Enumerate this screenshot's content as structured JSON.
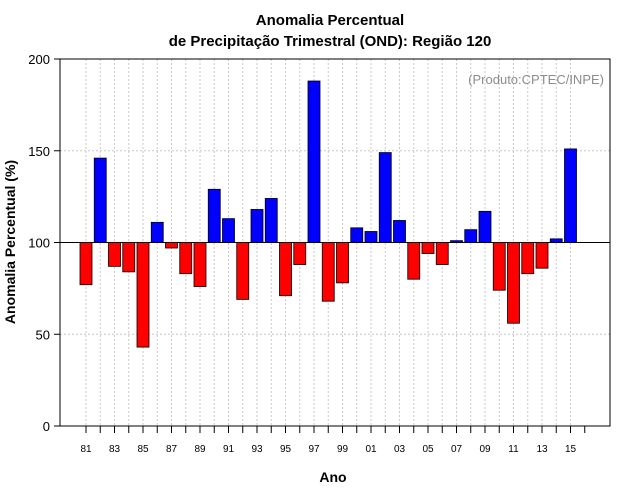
{
  "chart_data": {
    "type": "bar",
    "title": [
      "Anomalia Percentual",
      "de Precipitação Trimestral (OND): Região 120"
    ],
    "xlabel": "Ano",
    "ylabel": "Anomalia Percentual (%)",
    "source_note": "(Produto:CPTEC/INPE)",
    "ylim": [
      0,
      200
    ],
    "yticks": [
      0,
      50,
      100,
      150,
      200
    ],
    "baseline": 100,
    "grid": true,
    "categories": [
      "81",
      "82",
      "83",
      "84",
      "85",
      "86",
      "87",
      "88",
      "89",
      "90",
      "91",
      "92",
      "93",
      "94",
      "95",
      "96",
      "97",
      "98",
      "99",
      "00",
      "01",
      "02",
      "03",
      "04",
      "05",
      "06",
      "07",
      "08",
      "09",
      "10",
      "11",
      "12",
      "13",
      "14",
      "15"
    ],
    "xtick_labels": [
      "81",
      "83",
      "85",
      "87",
      "89",
      "91",
      "93",
      "95",
      "97",
      "99",
      "01",
      "03",
      "05",
      "07",
      "09",
      "11",
      "13",
      "15"
    ],
    "values": [
      77,
      146,
      87,
      84,
      43,
      111,
      97,
      83,
      76,
      129,
      113,
      69,
      118,
      124,
      71,
      88,
      188,
      68,
      78,
      108,
      106,
      149,
      112,
      80,
      94,
      88,
      101,
      107,
      117,
      74,
      56,
      83,
      86,
      102,
      151
    ],
    "colors": {
      "above": "#0000ff",
      "below": "#ff0000",
      "grid": "#c8c8c8",
      "watermark": "#8c8c8c"
    }
  }
}
